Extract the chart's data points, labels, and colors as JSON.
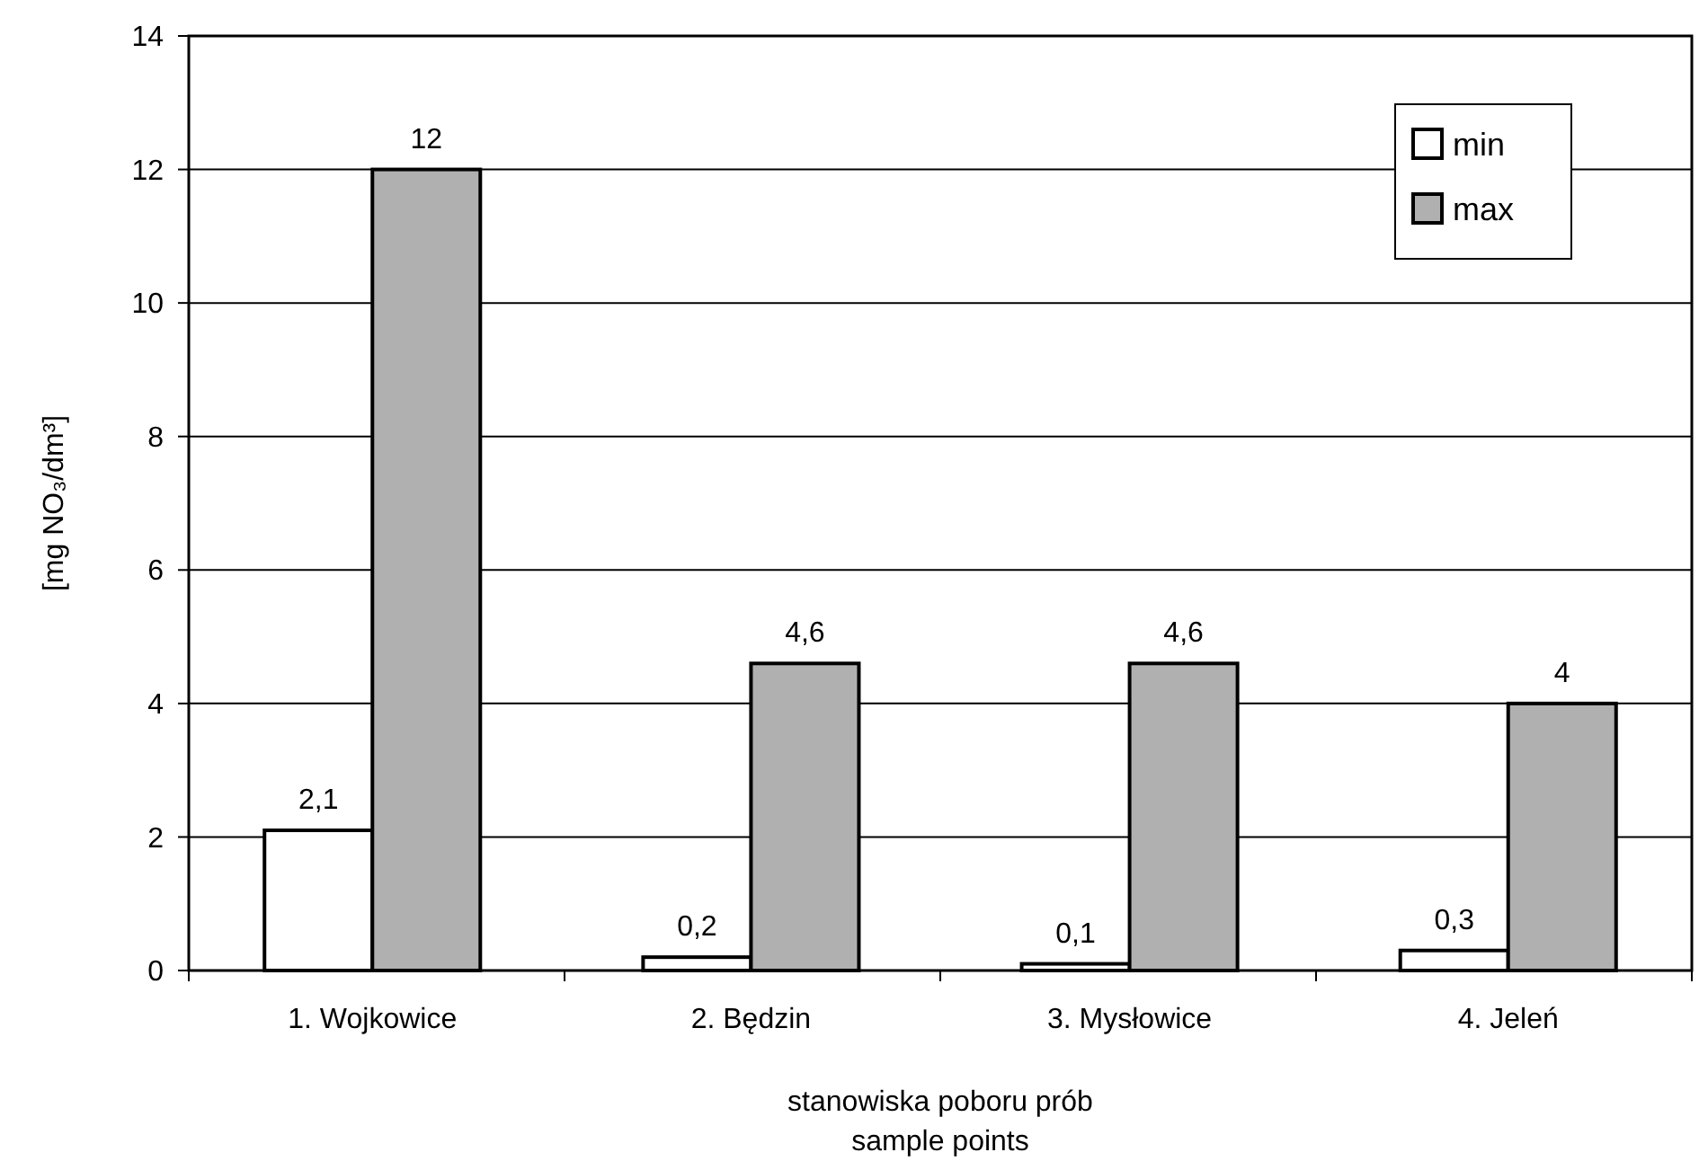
{
  "chart_data": {
    "type": "bar",
    "categories": [
      "1. Wojkowice",
      "2. Będzin",
      "3. Mysłowice",
      "4. Jeleń"
    ],
    "series": [
      {
        "name": "min",
        "color": "#ffffff",
        "values": [
          2.1,
          0.2,
          0.1,
          0.3
        ],
        "value_labels": [
          "2,1",
          "0,2",
          "0,1",
          "0,3"
        ]
      },
      {
        "name": "max",
        "color": "#b0b0b0",
        "values": [
          12,
          4.6,
          4.6,
          4
        ],
        "value_labels": [
          "12",
          "4,6",
          "4,6",
          "4"
        ]
      }
    ],
    "ylim": [
      0,
      14
    ],
    "yticks": [
      0,
      2,
      4,
      6,
      8,
      10,
      12,
      14
    ],
    "ylabel": "[mg NO₃/dm³]",
    "xlabel": "stanowiska poboru prób\nsample points",
    "grid": "y",
    "legend": "top right"
  }
}
